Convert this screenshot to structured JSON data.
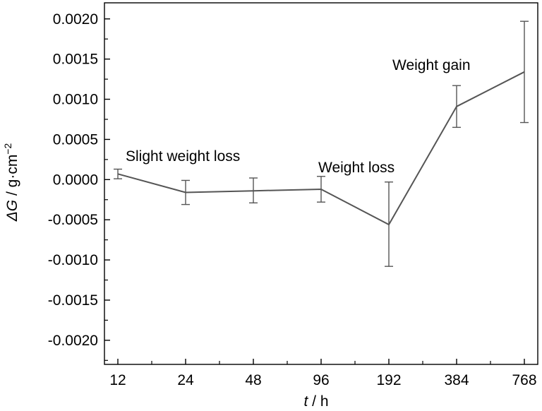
{
  "chart_data": {
    "type": "line",
    "title": "",
    "xlabel_var": "t",
    "xlabel_unit": " / h",
    "ylabel_var": "ΔG",
    "ylabel_unit": " / g·cm",
    "ylabel_exp": "−2",
    "categories": [
      "12",
      "24",
      "48",
      "96",
      "192",
      "384",
      "768"
    ],
    "series": [
      {
        "values": [
          7e-05,
          -0.00016,
          -0.00014,
          -0.00012,
          -0.00056,
          0.00091,
          0.00134
        ],
        "err_low": [
          1e-05,
          -0.00031,
          -0.00029,
          -0.00028,
          -0.00108,
          0.00065,
          0.00071
        ],
        "err_high": [
          0.00013,
          -1e-05,
          2e-05,
          4e-05,
          -3e-05,
          0.00117,
          0.00197
        ]
      }
    ],
    "ylim": [
      -0.0023,
      0.0022
    ],
    "yticks": [
      -0.002,
      -0.0015,
      -0.001,
      -0.0005,
      0.0,
      0.0005,
      0.001,
      0.0015,
      0.002
    ],
    "ytick_labels": [
      "-0.0020",
      "-0.0015",
      "-0.0010",
      "-0.0005",
      "0.0000",
      "0.0005",
      "0.0010",
      "0.0015",
      "0.0020"
    ],
    "annotations": [
      "Slight weight loss",
      "Weight loss",
      "Weight gain"
    ],
    "grid": false,
    "line_color": "#555555"
  }
}
